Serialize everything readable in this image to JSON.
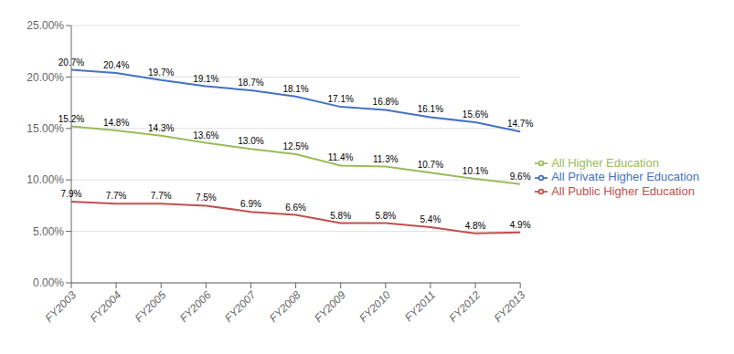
{
  "chart_data": {
    "type": "line",
    "categories": [
      "FY2003",
      "FY2004",
      "FY2005",
      "FY2006",
      "FY2007",
      "FY2008",
      "FY2009",
      "FY2010",
      "FY2011",
      "FY2012",
      "FY2013"
    ],
    "series": [
      {
        "name": "All Private Higher Education",
        "color": "#4472C4",
        "values": [
          20.7,
          20.4,
          19.7,
          19.1,
          18.7,
          18.1,
          17.1,
          16.8,
          16.1,
          15.6,
          14.7
        ],
        "value_labels": [
          "20.7%",
          "20.4%",
          "19.7%",
          "19.1%",
          "18.7%",
          "18.1%",
          "17.1%",
          "16.8%",
          "16.1%",
          "15.6%",
          "14.7%"
        ]
      },
      {
        "name": "All Public Higher Education",
        "color": "#C0504D",
        "values": [
          7.9,
          7.7,
          7.7,
          7.5,
          6.9,
          6.6,
          5.8,
          5.8,
          5.4,
          4.8,
          4.9
        ],
        "value_labels": [
          "7.9%",
          "7.7%",
          "7.7%",
          "7.5%",
          "6.9%",
          "6.6%",
          "5.8%",
          "5.8%",
          "5.4%",
          "4.8%",
          "4.9%"
        ]
      },
      {
        "name": "All Higher Education",
        "color": "#9BBB59",
        "values": [
          15.2,
          14.8,
          14.3,
          13.6,
          13.0,
          12.5,
          11.4,
          11.3,
          10.7,
          10.1,
          9.6
        ],
        "value_labels": [
          "15.2%",
          "14.8%",
          "14.3%",
          "13.6%",
          "13.0%",
          "12.5%",
          "11.4%",
          "11.3%",
          "10.7%",
          "10.1%",
          "9.6%"
        ]
      }
    ],
    "ylim": [
      0.0,
      25.0
    ],
    "yticks": [
      {
        "value": 0.0,
        "label": "0.00%"
      },
      {
        "value": 5.0,
        "label": "5.00%"
      },
      {
        "value": 10.0,
        "label": "10.00%"
      },
      {
        "value": 15.0,
        "label": "15.00%"
      },
      {
        "value": 20.0,
        "label": "20.00%"
      },
      {
        "value": 25.0,
        "label": "25.00%"
      }
    ],
    "grid": true,
    "legend": "right",
    "data_labels": true
  }
}
